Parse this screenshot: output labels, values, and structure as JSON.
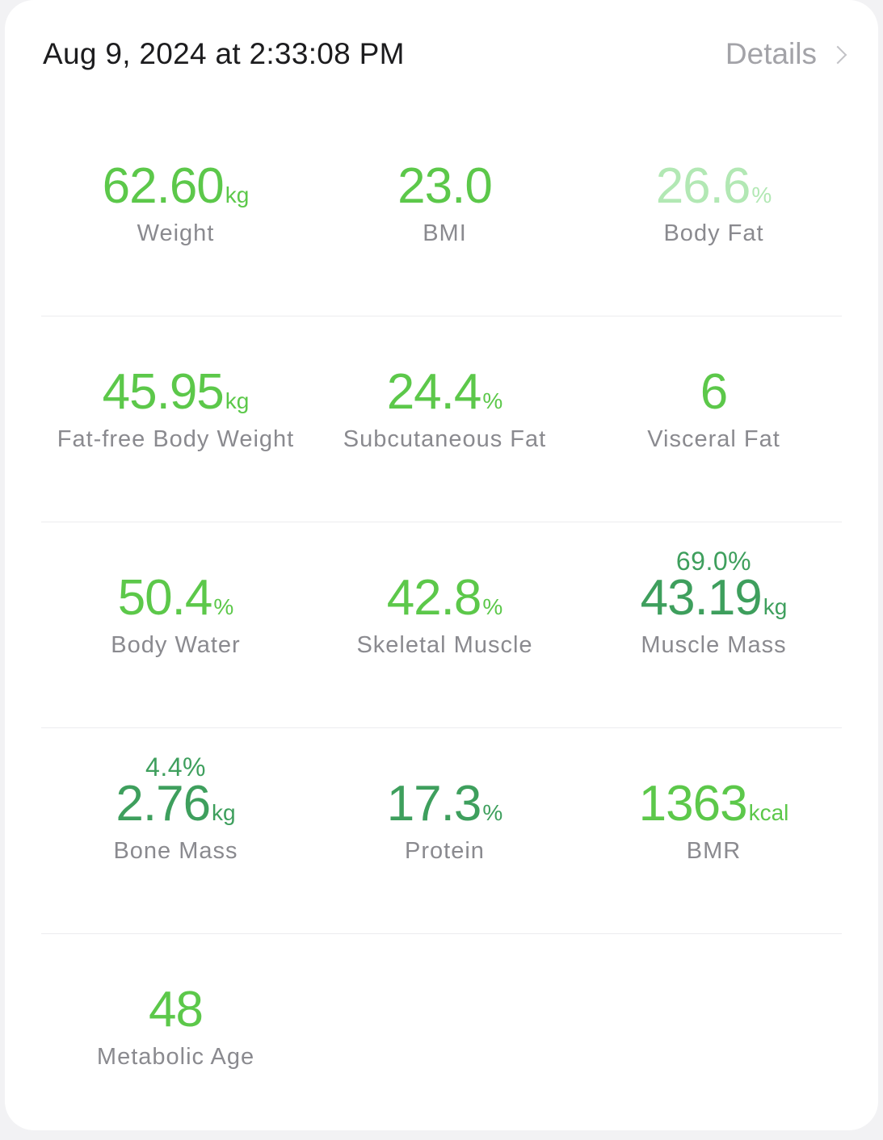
{
  "header": {
    "timestamp": "Aug 9, 2024 at 2:33:08 PM",
    "details_label": "Details"
  },
  "colors": {
    "green": "#5cc84a",
    "pale_green": "#b2e8b4",
    "dark_green": "#3e9f5d",
    "label_gray": "#8a8a8f"
  },
  "metrics": {
    "weight": {
      "value": "62.60",
      "unit": "kg",
      "label": "Weight"
    },
    "bmi": {
      "value": "23.0",
      "unit": "",
      "label": "BMI"
    },
    "body_fat": {
      "value": "26.6",
      "unit": "%",
      "label": "Body Fat"
    },
    "fat_free": {
      "value": "45.95",
      "unit": "kg",
      "label": "Fat-free Body Weight"
    },
    "subcutaneous_fat": {
      "value": "24.4",
      "unit": "%",
      "label": "Subcutaneous Fat"
    },
    "visceral_fat": {
      "value": "6",
      "unit": "",
      "label": "Visceral Fat"
    },
    "body_water": {
      "value": "50.4",
      "unit": "%",
      "label": "Body Water"
    },
    "skeletal_muscle": {
      "value": "42.8",
      "unit": "%",
      "label": "Skeletal Muscle"
    },
    "muscle_mass": {
      "sub": "69.0%",
      "value": "43.19",
      "unit": "kg",
      "label": "Muscle Mass"
    },
    "bone_mass": {
      "sub": "4.4%",
      "value": "2.76",
      "unit": "kg",
      "label": "Bone Mass"
    },
    "protein": {
      "value": "17.3",
      "unit": "%",
      "label": "Protein"
    },
    "bmr": {
      "value": "1363",
      "unit": "kcal",
      "label": "BMR"
    },
    "metabolic_age": {
      "value": "48",
      "unit": "",
      "label": "Metabolic Age"
    }
  }
}
